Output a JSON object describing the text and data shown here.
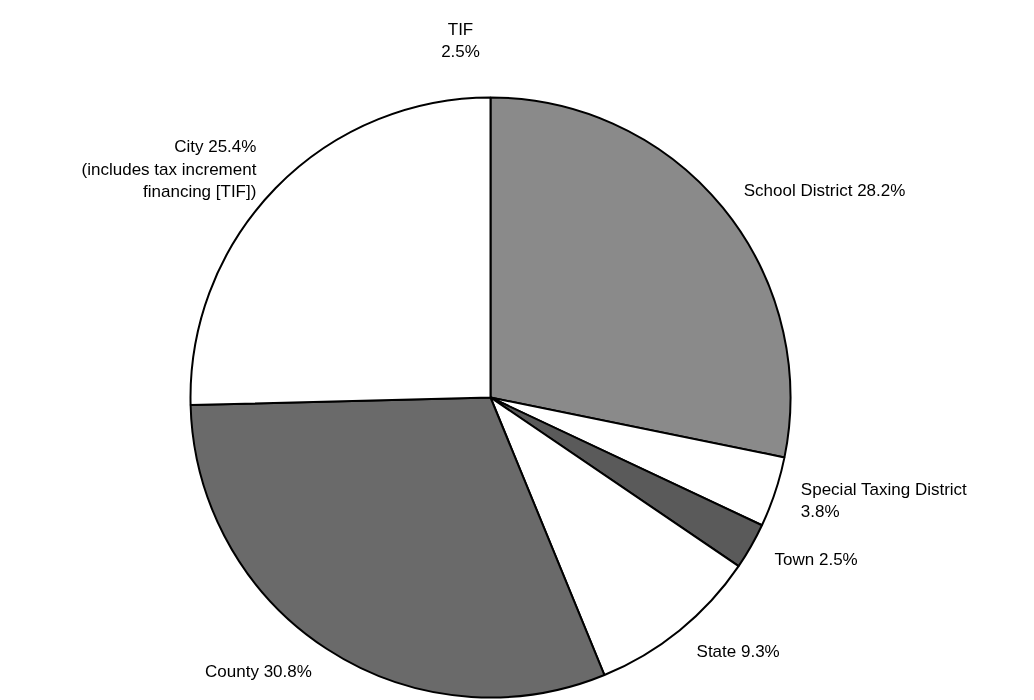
{
  "chart_data": {
    "type": "pie",
    "categories": [
      "School District 28.2%",
      "Special Taxing District\n3.8%",
      "Town 2.5%",
      "State 9.3%",
      "County 30.8%",
      "City 25.4%\n(includes tax increment\nfinancing [TIF])"
    ],
    "values": [
      28.2,
      3.8,
      2.5,
      9.3,
      30.8,
      25.4
    ],
    "colors": [
      "#8a8a8a",
      "#ffffff",
      "#5a5a5a",
      "#ffffff",
      "#6a6a6a",
      "#ffffff"
    ],
    "annotations": [
      "TIF\n2.5%"
    ]
  }
}
